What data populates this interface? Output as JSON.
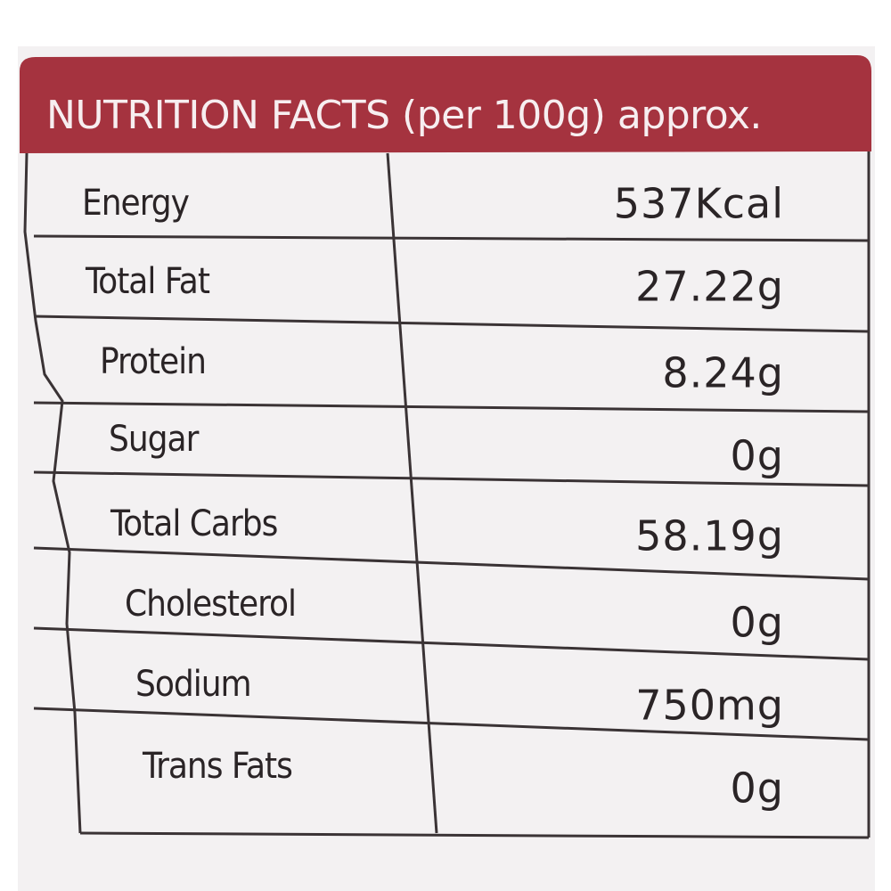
{
  "header": {
    "title": "NUTRITION FACTS (per 100g) approx."
  },
  "table": {
    "rows": [
      [
        "Energy",
        "537Kcal"
      ],
      [
        "Total Fat",
        "27.22g"
      ],
      [
        "Protein",
        "8.24g"
      ],
      [
        "Sugar",
        "0g"
      ],
      [
        "Total Carbs",
        "58.19g"
      ],
      [
        "Cholesterol",
        "0g"
      ],
      [
        "Sodium",
        "750mg"
      ],
      [
        "Trans Fats",
        "0g"
      ]
    ]
  }
}
